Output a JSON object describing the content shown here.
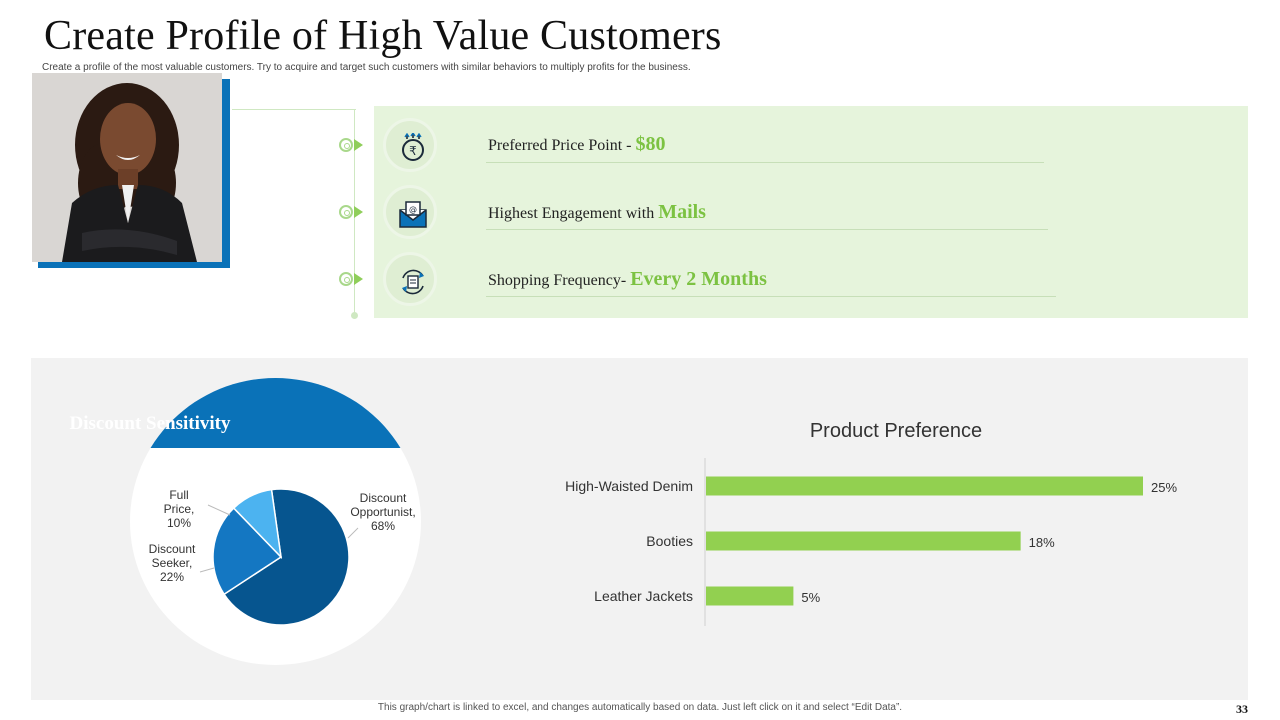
{
  "header": {
    "title": "Create Profile of High Value Customers",
    "subtitle": "Create a profile of the most valuable customers. Try to acquire and target such customers with similar behaviors to multiply profits for the business."
  },
  "colors": {
    "accent_blue": "#0a72b8",
    "accent_green": "#7cc242",
    "panel_green": "#e6f4dc",
    "panel_grey": "#f2f2f2"
  },
  "profile_rows": [
    {
      "icon": "rupee-price-icon",
      "label": "Preferred Price Point - ",
      "value": "$80"
    },
    {
      "icon": "mail-icon",
      "label": "Highest Engagement with ",
      "value": "Mails"
    },
    {
      "icon": "calendar-cycle-icon",
      "label": "Shopping Frequency- ",
      "value": "Every 2 Months"
    }
  ],
  "chart_data": [
    {
      "type": "pie",
      "title": "Discount Sensitivity",
      "slices": [
        {
          "label": "Discount Opportunist",
          "value": 68,
          "color": "#06558f"
        },
        {
          "label": "Discount Seeker",
          "value": 22,
          "color": "#1477c2"
        },
        {
          "label": "Full Price",
          "value": 10,
          "color": "#4cb3f0"
        }
      ],
      "data_labels": [
        "Discount Opportunist, 68%",
        "Discount Seeker, 22%",
        "Full Price, 10%"
      ]
    },
    {
      "type": "bar",
      "orientation": "horizontal",
      "title": "Product Preference",
      "categories": [
        "High-Waisted Denim",
        "Booties",
        "Leather Jackets"
      ],
      "values": [
        25,
        18,
        5
      ],
      "value_labels": [
        "25%",
        "18%",
        "5%"
      ],
      "bar_color": "#92d050",
      "xlim": [
        0,
        26
      ]
    }
  ],
  "footer": {
    "note": "This graph/chart is linked to excel,  and changes automatically based on data. Just left click on it and select “Edit Data”.",
    "page_number": "33"
  }
}
